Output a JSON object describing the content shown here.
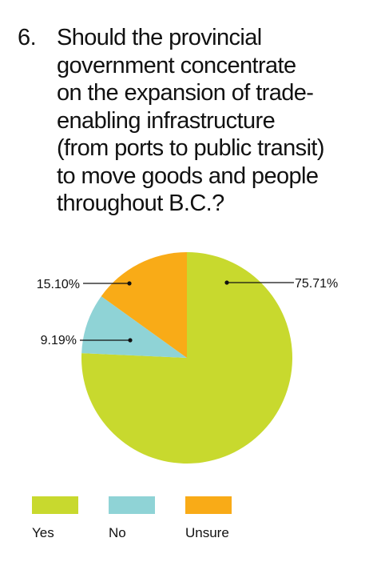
{
  "question": {
    "number": "6.",
    "lines": [
      "Should the provincial",
      "government concentrate",
      "on the expansion of trade-",
      "enabling infrastructure",
      "(from ports to public transit)",
      "to move goods and people",
      "throughout B.C.?"
    ]
  },
  "chart_data": {
    "type": "pie",
    "title": "",
    "categories": [
      "Yes",
      "No",
      "Unsure"
    ],
    "values": [
      75.71,
      9.19,
      15.1
    ],
    "labels": [
      "75.71%",
      "9.19%",
      "15.10%"
    ],
    "colors": [
      "#c8d92e",
      "#8fd3d6",
      "#f9ab17"
    ],
    "start_angle_deg": 0,
    "direction": "clockwise",
    "legend_position": "bottom"
  },
  "legend": {
    "items": [
      {
        "label": "Yes",
        "color": "#c8d92e"
      },
      {
        "label": "No",
        "color": "#8fd3d6"
      },
      {
        "label": "Unsure",
        "color": "#f9ab17"
      }
    ]
  }
}
